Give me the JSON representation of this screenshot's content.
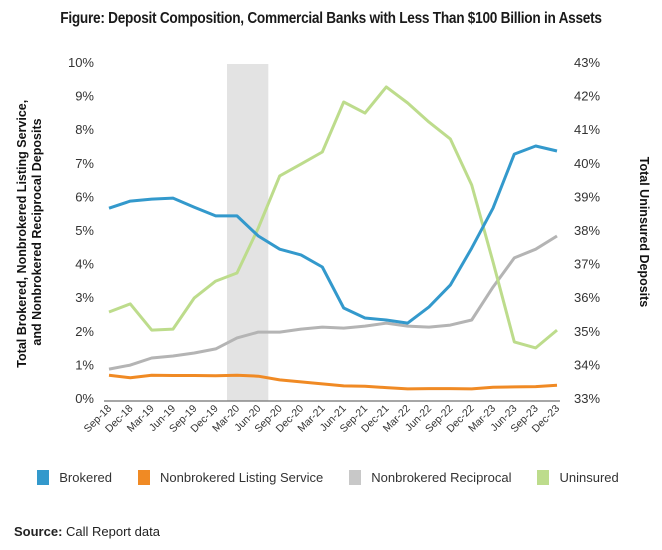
{
  "title": "Figure: Deposit Composition, Commercial Banks with Less Than $100 Billion in Assets",
  "source": {
    "label": "Source:",
    "text": " Call Report data"
  },
  "legend": [
    {
      "name": "Brokered",
      "color": "#3399cc"
    },
    {
      "name": "Nonbrokered Listing Service",
      "color": "#f08a24"
    },
    {
      "name": "Nonbrokered Reciprocal",
      "color": "#c8c8c8"
    },
    {
      "name": "Uninsured",
      "color": "#bddc8c"
    }
  ],
  "chart_data": {
    "type": "line",
    "title": "Figure: Deposit Composition, Commercial Banks with Less Than $100 Billion in Assets",
    "xlabel": "",
    "ylabel": "Total Brokered, Nonbrokered Listing Service, and Nonbrokered Reciprocal Deposits",
    "ylabel_right": "Total Uninsured Deposits",
    "ylim": [
      0,
      10
    ],
    "ylim_right": [
      33,
      43
    ],
    "yticks": [
      "0%",
      "1%",
      "2%",
      "3%",
      "4%",
      "5%",
      "6%",
      "7%",
      "8%",
      "9%",
      "10%"
    ],
    "yticks_right": [
      "33%",
      "34%",
      "35%",
      "36%",
      "37%",
      "38%",
      "39%",
      "40%",
      "41%",
      "42%",
      "43%"
    ],
    "grid": false,
    "legend_position": "bottom",
    "shaded_region": {
      "from": "Mar-20",
      "to": "Jun-20",
      "color": "#e3e3e3",
      "note": "recession shading"
    },
    "categories": [
      "Sep-18",
      "Dec-18",
      "Mar-19",
      "Jun-19",
      "Sep-19",
      "Dec-19",
      "Mar-20",
      "Jun-20",
      "Sep-20",
      "Dec-20",
      "Mar-21",
      "Jun-21",
      "Sep-21",
      "Dec-21",
      "Mar-22",
      "Jun-22",
      "Sep-22",
      "Dec-22",
      "Mar-23",
      "Jun-23",
      "Sep-23",
      "Dec-23"
    ],
    "series": [
      {
        "name": "Brokered",
        "axis": "left",
        "color": "#3399cc",
        "values": [
          5.65,
          5.86,
          5.92,
          5.95,
          5.68,
          5.42,
          5.42,
          4.82,
          4.43,
          4.26,
          3.9,
          2.68,
          2.38,
          2.32,
          2.23,
          2.71,
          3.36,
          4.46,
          5.65,
          7.26,
          7.5,
          7.35
        ]
      },
      {
        "name": "Nonbrokered Listing Service",
        "axis": "left",
        "color": "#f08a24",
        "values": [
          0.68,
          0.6,
          0.68,
          0.67,
          0.67,
          0.66,
          0.68,
          0.65,
          0.54,
          0.48,
          0.42,
          0.36,
          0.35,
          0.31,
          0.27,
          0.28,
          0.28,
          0.27,
          0.32,
          0.33,
          0.34,
          0.38
        ]
      },
      {
        "name": "Nonbrokered Reciprocal",
        "axis": "left",
        "color": "#b4b4b4",
        "values": [
          0.86,
          0.98,
          1.19,
          1.25,
          1.34,
          1.46,
          1.79,
          1.96,
          1.96,
          2.05,
          2.11,
          2.08,
          2.14,
          2.23,
          2.14,
          2.11,
          2.17,
          2.32,
          3.3,
          4.17,
          4.43,
          4.82
        ]
      },
      {
        "name": "Uninsured",
        "axis": "right",
        "color": "#bddc8c",
        "values": [
          35.56,
          35.8,
          35.02,
          35.05,
          35.98,
          36.48,
          36.72,
          38.06,
          39.61,
          39.96,
          40.32,
          41.81,
          41.48,
          42.26,
          41.78,
          41.21,
          40.71,
          39.34,
          37.05,
          34.67,
          34.49,
          35.02
        ]
      }
    ]
  }
}
